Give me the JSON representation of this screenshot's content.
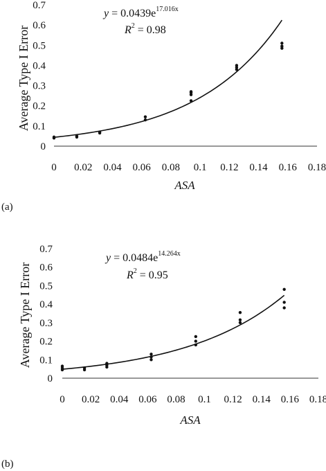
{
  "chart_data": [
    {
      "type": "scatter",
      "panel_label": "(a)",
      "ylabel": "Average Type I Error",
      "xlabel": "ASA",
      "equation": {
        "y": "y",
        "eq": " = 0.0439e",
        "exp": "17.016x"
      },
      "r2": {
        "r": "R",
        "sup": "2",
        "eq": " = 0.98"
      },
      "xlim": [
        0,
        0.18
      ],
      "ylim": [
        0,
        0.7
      ],
      "xticks": [
        "0",
        "0.02",
        "0.04",
        "0.06",
        "0.08",
        "0.1",
        "0.12",
        "0.14",
        "0.16",
        "0.18"
      ],
      "yticks": [
        "0",
        "0.1",
        "0.2",
        "0.3",
        "0.4",
        "0.5",
        "0.6",
        "0.7"
      ],
      "trendline": {
        "form": "exponential",
        "a": 0.0439,
        "b": 17.016,
        "x_range": [
          0,
          0.156
        ]
      },
      "series": [
        {
          "points": [
            [
              0,
              0.04
            ],
            [
              0,
              0.045
            ],
            [
              0.0156,
              0.045
            ],
            [
              0.0156,
              0.05
            ],
            [
              0.0313,
              0.065
            ],
            [
              0.0313,
              0.07
            ],
            [
              0.0625,
              0.13
            ],
            [
              0.0625,
              0.145
            ],
            [
              0.0938,
              0.225
            ],
            [
              0.0938,
              0.255
            ],
            [
              0.0938,
              0.265
            ],
            [
              0.0938,
              0.27
            ],
            [
              0.125,
              0.38
            ],
            [
              0.125,
              0.39
            ],
            [
              0.125,
              0.4
            ],
            [
              0.156,
              0.485
            ],
            [
              0.156,
              0.495
            ],
            [
              0.156,
              0.51
            ]
          ]
        }
      ]
    },
    {
      "type": "scatter",
      "panel_label": "(b)",
      "ylabel": "Average Type I Error",
      "xlabel": "ASA",
      "equation": {
        "y": "y",
        "eq": " = 0.0484e",
        "exp": "14.264x"
      },
      "r2": {
        "r": "R",
        "sup": "2",
        "eq": " = 0.95"
      },
      "xlim": [
        0,
        0.18
      ],
      "ylim": [
        0,
        0.7
      ],
      "xticks": [
        "0",
        "0.02",
        "0.04",
        "0.06",
        "0.08",
        "0.1",
        "0.12",
        "0.14",
        "0.16",
        "0.18"
      ],
      "yticks": [
        "0",
        "0.1",
        "0.2",
        "0.3",
        "0.4",
        "0.5",
        "0.6",
        "0.7"
      ],
      "trendline": {
        "form": "exponential",
        "a": 0.0484,
        "b": 14.264,
        "x_range": [
          0,
          0.156
        ]
      },
      "series": [
        {
          "points": [
            [
              0,
              0.045
            ],
            [
              0,
              0.055
            ],
            [
              0,
              0.065
            ],
            [
              0.0156,
              0.045
            ],
            [
              0.0156,
              0.055
            ],
            [
              0.0313,
              0.06
            ],
            [
              0.0313,
              0.07
            ],
            [
              0.0313,
              0.08
            ],
            [
              0.0625,
              0.1
            ],
            [
              0.0625,
              0.115
            ],
            [
              0.0625,
              0.13
            ],
            [
              0.0938,
              0.18
            ],
            [
              0.0938,
              0.2
            ],
            [
              0.0938,
              0.225
            ],
            [
              0.125,
              0.3
            ],
            [
              0.125,
              0.315
            ],
            [
              0.125,
              0.355
            ],
            [
              0.156,
              0.38
            ],
            [
              0.156,
              0.41
            ],
            [
              0.156,
              0.48
            ]
          ]
        }
      ]
    }
  ]
}
